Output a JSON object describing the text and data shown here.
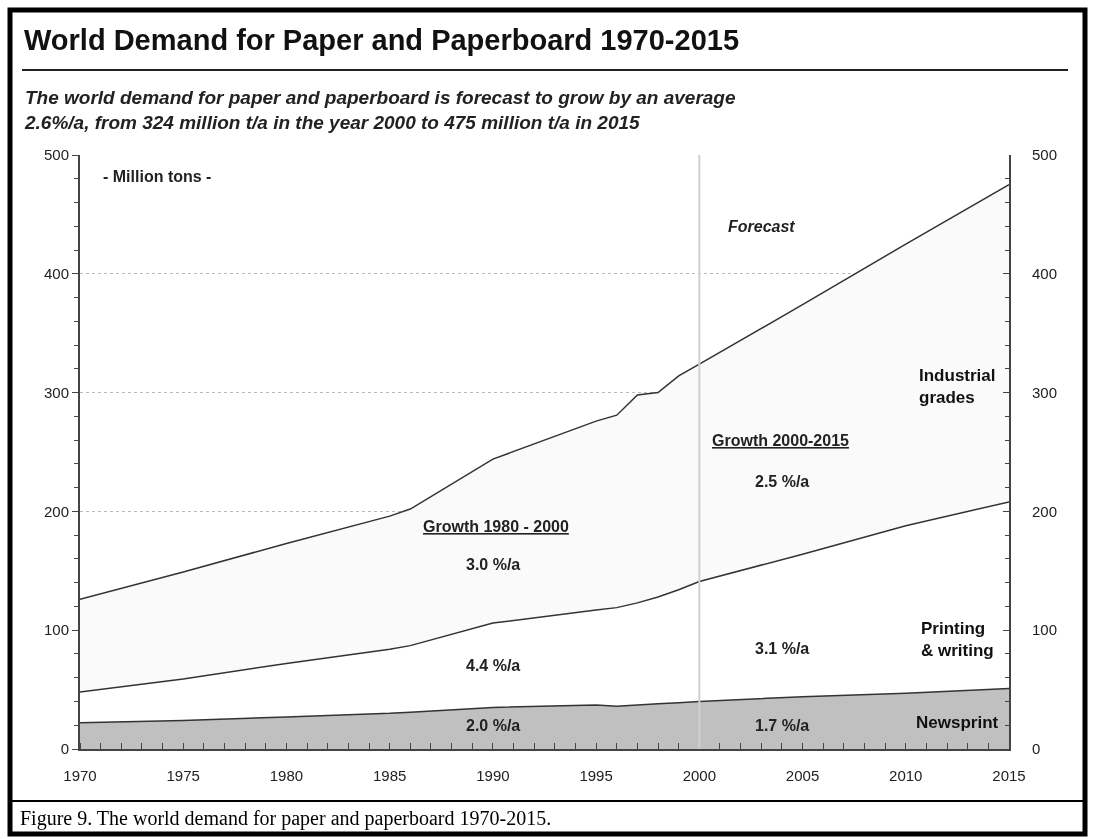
{
  "chart_data": {
    "type": "area",
    "stacked": true,
    "title": "World Demand for Paper and Paperboard 1970-2015",
    "subtitle": "The world demand for paper and paperboard is forecast to grow by an average 2.6%/a, from 324 million t/a in the year 2000 to 475 million t/a in 2015",
    "x": [
      1970,
      1975,
      1980,
      1985,
      1986,
      1990,
      1995,
      1996,
      1997,
      1998,
      1999,
      2000,
      2005,
      2010,
      2015
    ],
    "series": [
      {
        "name": "Newsprint",
        "color": "#c0c0c0",
        "values": [
          22,
          24,
          27,
          30,
          31,
          35,
          37,
          36,
          37,
          38,
          39,
          40,
          44,
          47,
          51
        ]
      },
      {
        "name": "Printing & writing",
        "color": "#ffffff",
        "values": [
          26,
          35,
          45,
          54,
          56,
          71,
          80,
          83,
          86,
          90,
          95,
          101,
          120,
          141,
          157
        ]
      },
      {
        "name": "Industrial grades",
        "color": "#fafafa",
        "values": [
          78,
          90,
          101,
          112,
          115,
          138,
          159,
          162,
          175,
          172,
          180,
          183,
          210,
          237,
          267
        ]
      }
    ],
    "xlim": [
      1970,
      2015
    ],
    "xticks": [
      1970,
      1975,
      1980,
      1985,
      1990,
      1995,
      2000,
      2005,
      2010,
      2015
    ],
    "ylim": [
      0,
      500
    ],
    "yticks": [
      0,
      100,
      200,
      300,
      400,
      500
    ],
    "y2lim": [
      0,
      500
    ],
    "y2ticks": [
      0,
      100,
      200,
      300,
      400,
      500
    ],
    "grid": "y",
    "legend": false,
    "ref_lines": [
      {
        "axis": "x",
        "value": 2000,
        "color": "#d0d0d0"
      }
    ],
    "annotations": [
      "- Million tons -",
      "Forecast",
      "Growth 1980 - 2000",
      "3.0 %/a",
      "4.4 %/a",
      "2.0 %/a",
      "Growth 2000-2015",
      "2.5 %/a",
      "3.1 %/a",
      "1.7 %/a",
      "Figure 9. The world demand for paper and paperboard 1970-2015."
    ]
  }
}
